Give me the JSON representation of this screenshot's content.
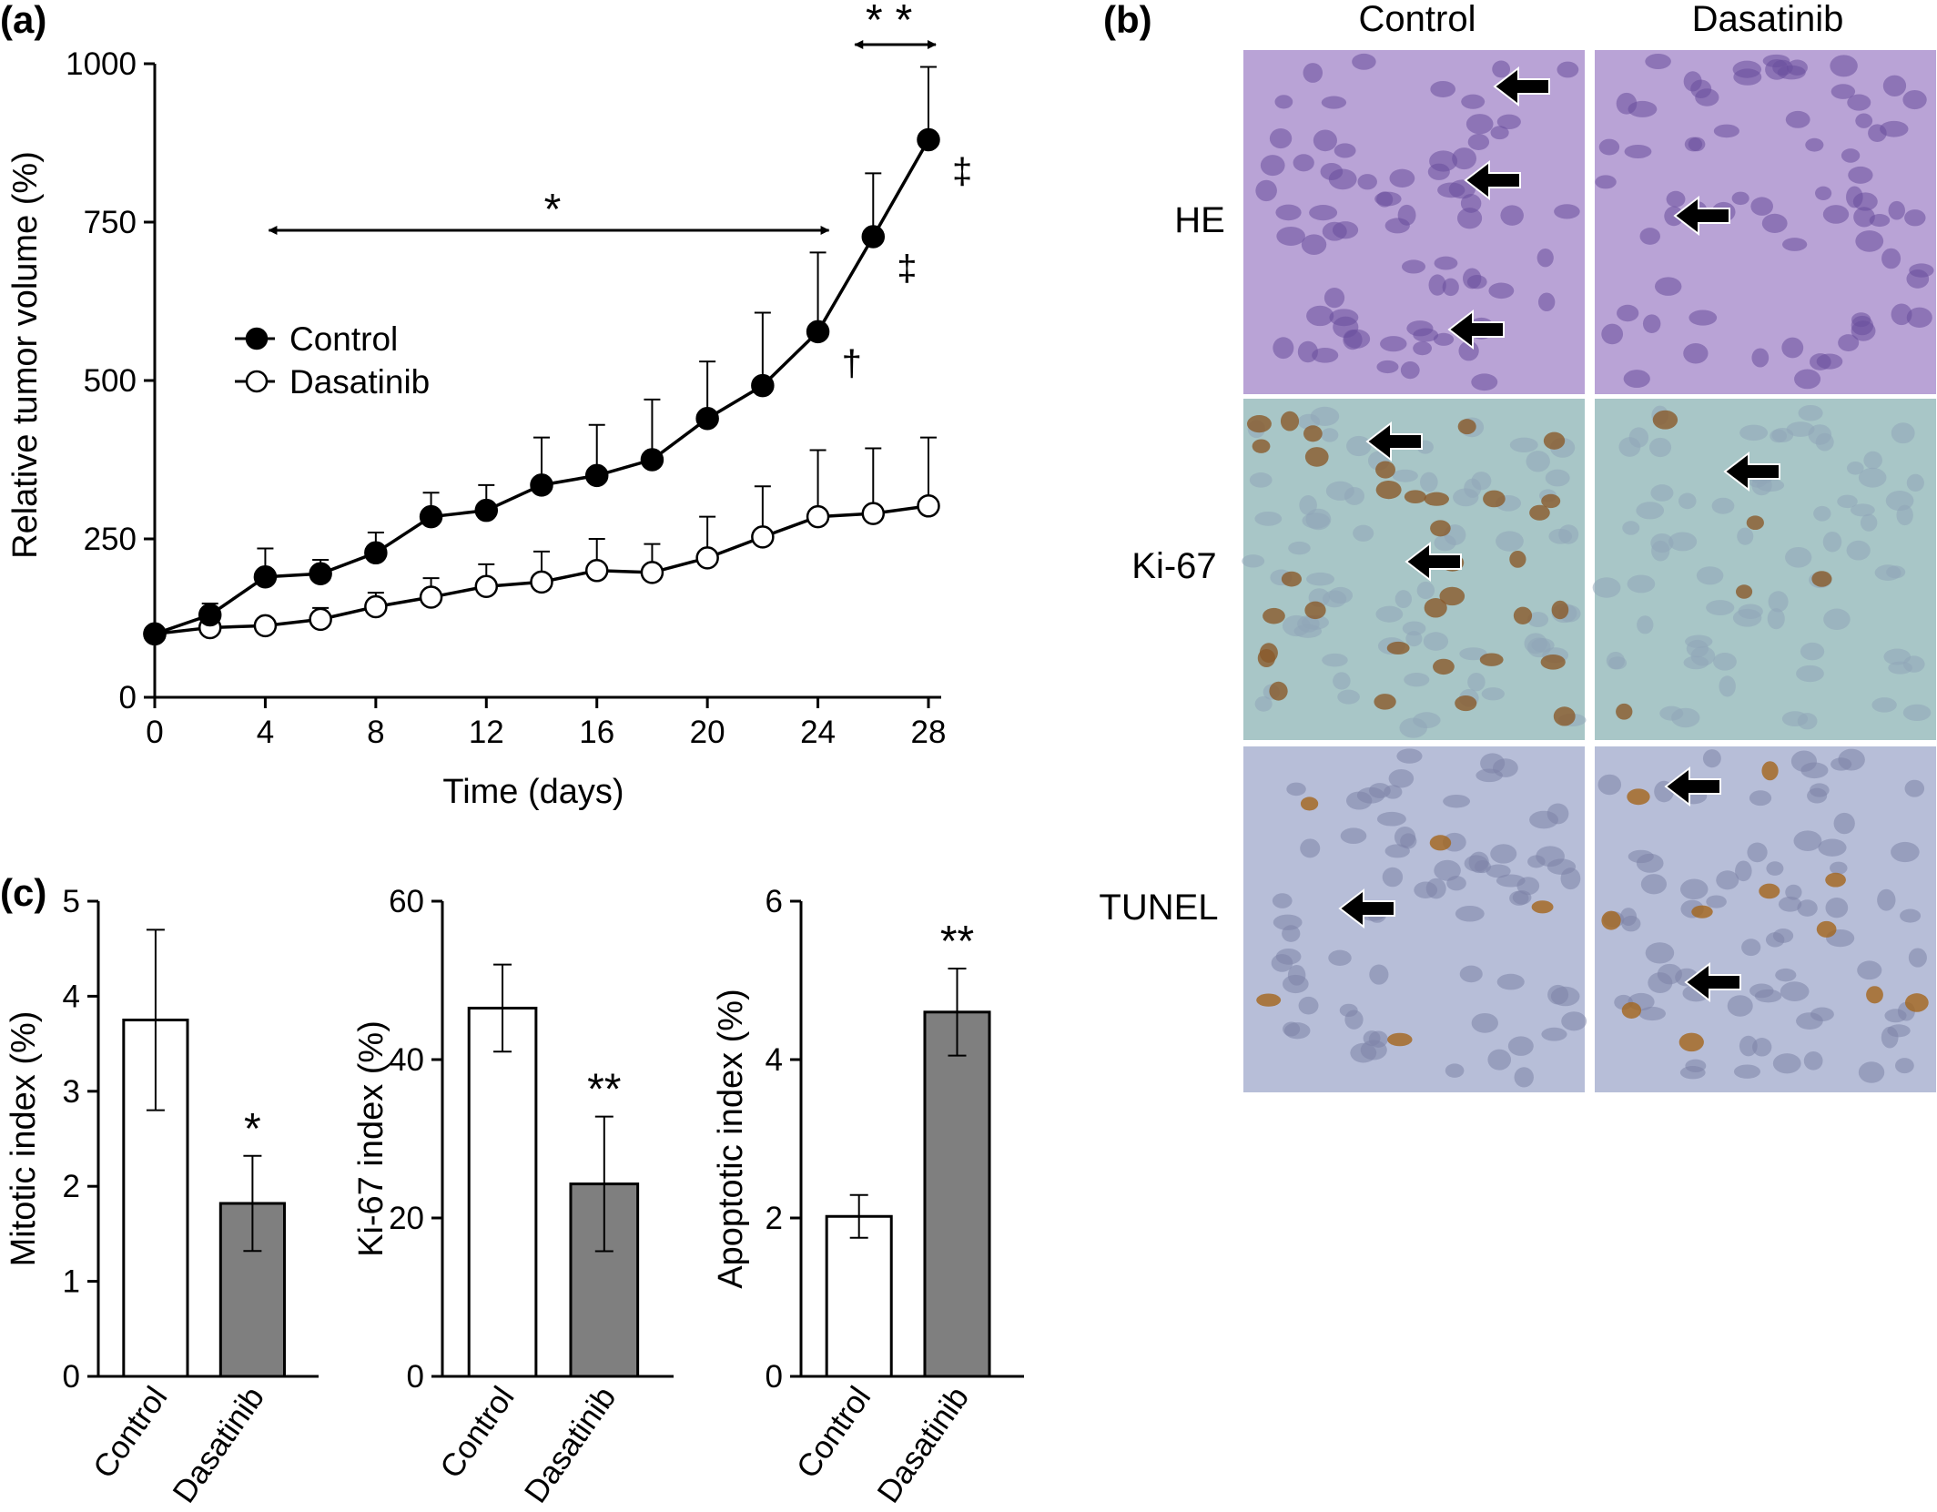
{
  "panels": {
    "a": {
      "letter": "(a)",
      "ylabel": "Relative tumor volume (%)",
      "xlabel": "Time (days)",
      "yticks": [
        "0",
        "250",
        "500",
        "750",
        "1000"
      ],
      "xticks": [
        "0",
        "4",
        "8",
        "12",
        "16",
        "20",
        "24",
        "28"
      ],
      "legend": {
        "control": "Control",
        "dasatinib": "Dasatinib"
      },
      "sig_single": "*",
      "sig_double": "**",
      "markers": [
        "†",
        "‡",
        "‡"
      ]
    },
    "b": {
      "letter": "(b)",
      "col_labels": [
        "Control",
        "Dasatinib"
      ],
      "row_labels": [
        "HE",
        "Ki-67",
        "TUNEL"
      ],
      "micrograph_colors": {
        "HE": {
          "base": "#b9a3d6",
          "nucleus": "#6a4f9c"
        },
        "Ki-67": {
          "base": "#a8c6c7",
          "nucleus": "#8fa6b8",
          "positive": "#8a5a2a"
        },
        "TUNEL": {
          "base": "#b7bed8",
          "nucleus": "#7d84a8",
          "positive": "#a4651c"
        }
      }
    },
    "c": {
      "letter": "(c)",
      "category_labels": [
        "Control",
        "Dasatinib"
      ],
      "bar_colors": [
        "#ffffff",
        "#7f7f7f"
      ],
      "charts": [
        {
          "ylabel": "Mitotic index (%)",
          "yticks": [
            "0",
            "1",
            "2",
            "3",
            "4",
            "5"
          ],
          "sig": "*"
        },
        {
          "ylabel": "Ki-67 index (%)",
          "yticks": [
            "0",
            "20",
            "40",
            "60"
          ],
          "sig": "**"
        },
        {
          "ylabel": "Apoptotic index (%)",
          "yticks": [
            "0",
            "2",
            "4",
            "6"
          ],
          "sig": "**"
        }
      ]
    }
  },
  "chart_data": [
    {
      "type": "line",
      "title": "",
      "xlabel": "Time (days)",
      "ylabel": "Relative tumor volume (%)",
      "xlim": [
        0,
        28
      ],
      "ylim": [
        0,
        1000
      ],
      "x": [
        0,
        2,
        4,
        6,
        8,
        10,
        12,
        14,
        16,
        18,
        20,
        22,
        24,
        26,
        28
      ],
      "series": [
        {
          "name": "Control",
          "marker": "filled-circle",
          "values": [
            100,
            130,
            190,
            195,
            228,
            285,
            295,
            335,
            350,
            375,
            440,
            492,
            577,
            727,
            880
          ],
          "errors": [
            5,
            18,
            45,
            22,
            32,
            38,
            40,
            75,
            80,
            95,
            90,
            115,
            125,
            100,
            115
          ]
        },
        {
          "name": "Dasatinib",
          "marker": "open-circle",
          "values": [
            100,
            110,
            113,
            123,
            143,
            158,
            175,
            182,
            200,
            197,
            220,
            253,
            285,
            290,
            302
          ],
          "errors": [
            5,
            8,
            10,
            18,
            22,
            30,
            35,
            48,
            50,
            45,
            65,
            80,
            105,
            103,
            108
          ]
        }
      ],
      "annotations": [
        {
          "text": "*",
          "x_range": [
            4,
            24
          ]
        },
        {
          "text": "**",
          "x_range": [
            26,
            28
          ]
        },
        {
          "text": "†",
          "x": 24
        },
        {
          "text": "‡",
          "x": 26
        },
        {
          "text": "‡",
          "x": 28
        }
      ],
      "legend": "left-middle",
      "grid": false
    },
    {
      "type": "bar",
      "categories": [
        "Control",
        "Dasatinib"
      ],
      "values": [
        3.75,
        1.82
      ],
      "errors": [
        0.95,
        0.5
      ],
      "ylabel": "Mitotic index (%)",
      "ylim": [
        0,
        5
      ],
      "annotations": [
        {
          "text": "*",
          "category": "Dasatinib"
        }
      ]
    },
    {
      "type": "bar",
      "categories": [
        "Control",
        "Dasatinib"
      ],
      "values": [
        46.5,
        24.3
      ],
      "errors": [
        5.5,
        8.5
      ],
      "ylabel": "Ki-67 index (%)",
      "ylim": [
        0,
        60
      ],
      "annotations": [
        {
          "text": "**",
          "category": "Dasatinib"
        }
      ]
    },
    {
      "type": "bar",
      "categories": [
        "Control",
        "Dasatinib"
      ],
      "values": [
        2.02,
        4.6
      ],
      "errors": [
        0.27,
        0.55
      ],
      "ylabel": "Apoptotic index (%)",
      "ylim": [
        0,
        6
      ],
      "annotations": [
        {
          "text": "**",
          "category": "Dasatinib"
        }
      ]
    }
  ]
}
